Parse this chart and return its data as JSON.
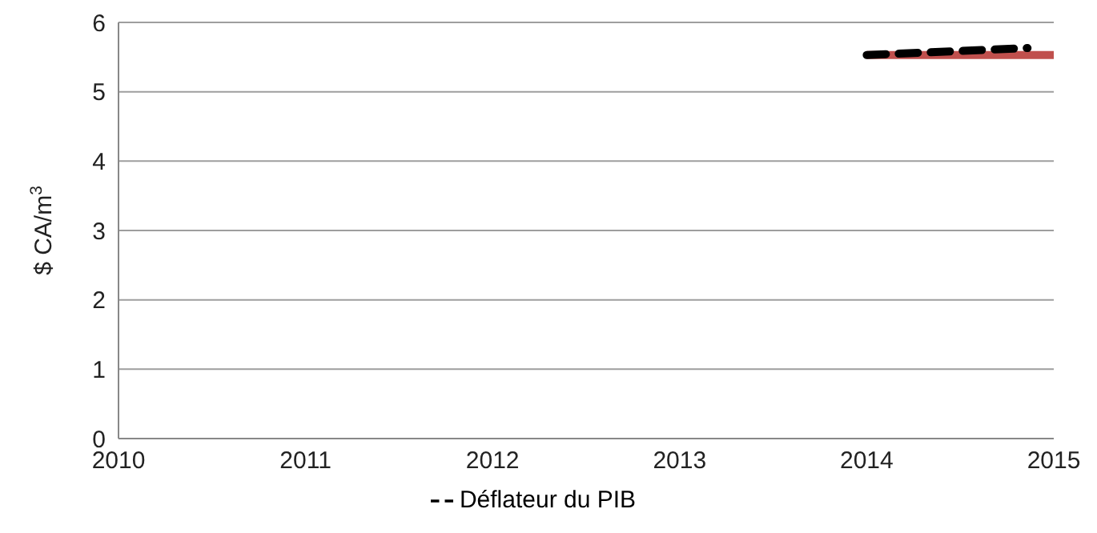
{
  "chart_data": {
    "type": "line",
    "ylabel": "$ CA/m$^{3}$",
    "xlim": [
      2010,
      2015
    ],
    "xticks": [
      2010,
      2011,
      2012,
      2013,
      2014,
      2015
    ],
    "ylim": [
      0,
      6
    ],
    "yticks": [
      0,
      1,
      2,
      3,
      4,
      5,
      6
    ],
    "grid": "y",
    "legend": "bottom",
    "marker": "none",
    "series": [
      {
        "color": "#c0504d",
        "line_style": "solid",
        "x": [
          2014,
          2015
        ],
        "values": [
          5.53,
          5.53
        ]
      },
      {
        "name": "Déflateur du PIB",
        "color": "#000000",
        "line_style": "dashed",
        "x": [
          2014,
          2014.86
        ],
        "values": [
          5.53,
          5.63
        ]
      }
    ]
  }
}
